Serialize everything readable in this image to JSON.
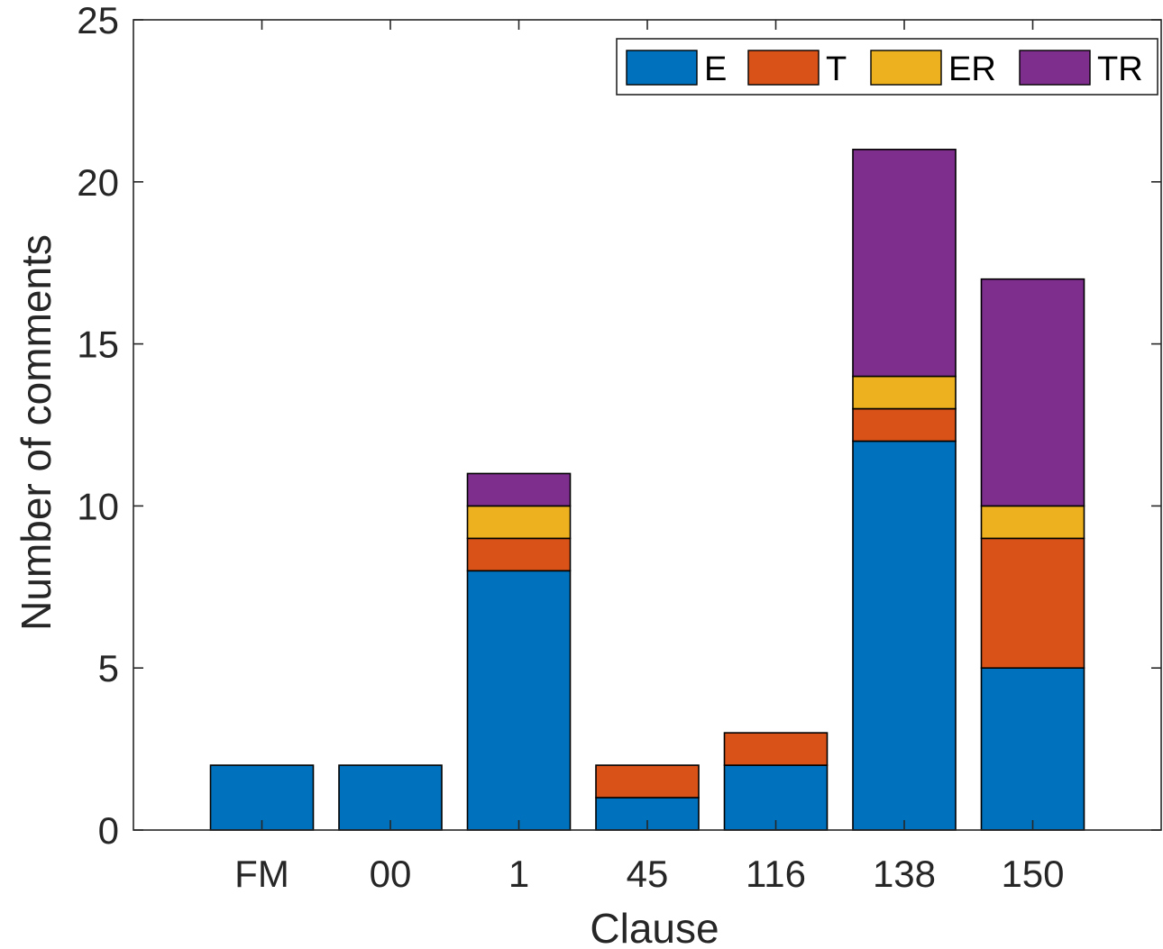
{
  "chart_data": {
    "type": "bar",
    "stacked": true,
    "categories": [
      "FM",
      "00",
      "1",
      "45",
      "116",
      "138",
      "150"
    ],
    "series": [
      {
        "name": "E",
        "color": "#0072BD",
        "values": [
          2,
          2,
          8,
          1,
          2,
          12,
          5
        ]
      },
      {
        "name": "T",
        "color": "#D95319",
        "values": [
          0,
          0,
          1,
          1,
          1,
          1,
          4
        ]
      },
      {
        "name": "ER",
        "color": "#EDB120",
        "values": [
          0,
          0,
          1,
          0,
          0,
          1,
          1
        ]
      },
      {
        "name": "TR",
        "color": "#7E2F8E",
        "values": [
          0,
          0,
          1,
          0,
          0,
          7,
          7
        ]
      }
    ],
    "title": "",
    "xlabel": "Clause",
    "ylabel": "Number of comments",
    "ylim": [
      0,
      25
    ],
    "yticks": [
      0,
      5,
      10,
      15,
      20,
      25
    ],
    "grid": false,
    "legend": {
      "placement": "top-right",
      "orientation": "horizontal"
    }
  }
}
